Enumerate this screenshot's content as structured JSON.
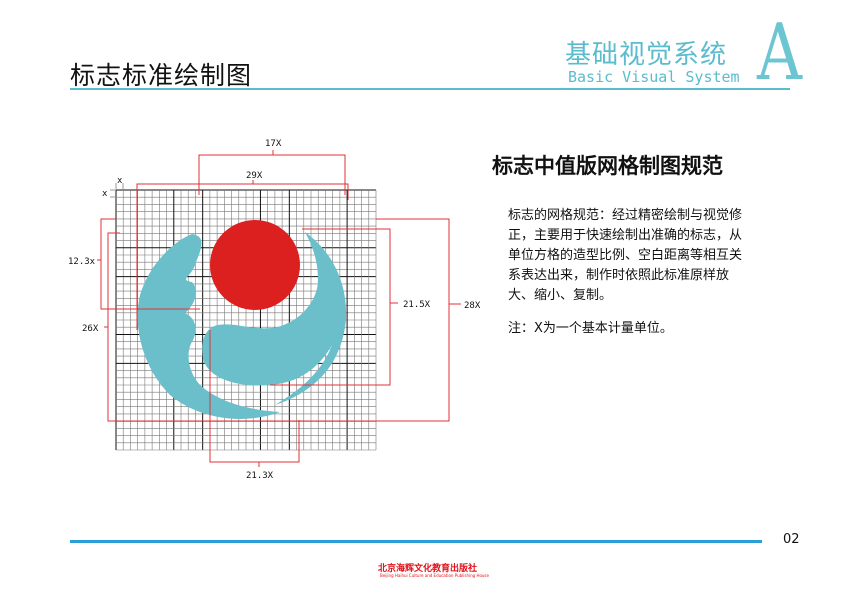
{
  "header": {
    "title": "标志标准绘制图",
    "brand_cn": "基础视觉系统",
    "brand_en": "Basic Visual System",
    "brand_letter": "A"
  },
  "section": {
    "heading": "标志中值版网格制图规范",
    "body": "标志的网格规范：经过精密绘制与视觉修正，主要用于快速绘制出准确的标志，从单位方格的造型比例、空白距离等相互关系表达出来，制作时依照此标准原样放大、缩小、复制。",
    "note": "注：X为一个基本计量单位。"
  },
  "diagram": {
    "labels": {
      "top": "17X",
      "width": "29X",
      "unit_x": "x",
      "unit_y": "x",
      "left_inner": "12.3x",
      "left_outer": "26X",
      "right_inner": "21.5X",
      "right_outer": "28X",
      "bottom": "21.3X"
    },
    "colors": {
      "logo_teal": "#6abfca",
      "logo_red": "#dc1f1f",
      "dimension": "#e0303a"
    }
  },
  "footer": {
    "page": "02",
    "publisher_cn": "北京海辉文化教育出版社",
    "publisher_en": "Beijing Haihui Culture and Education Publishing House"
  }
}
